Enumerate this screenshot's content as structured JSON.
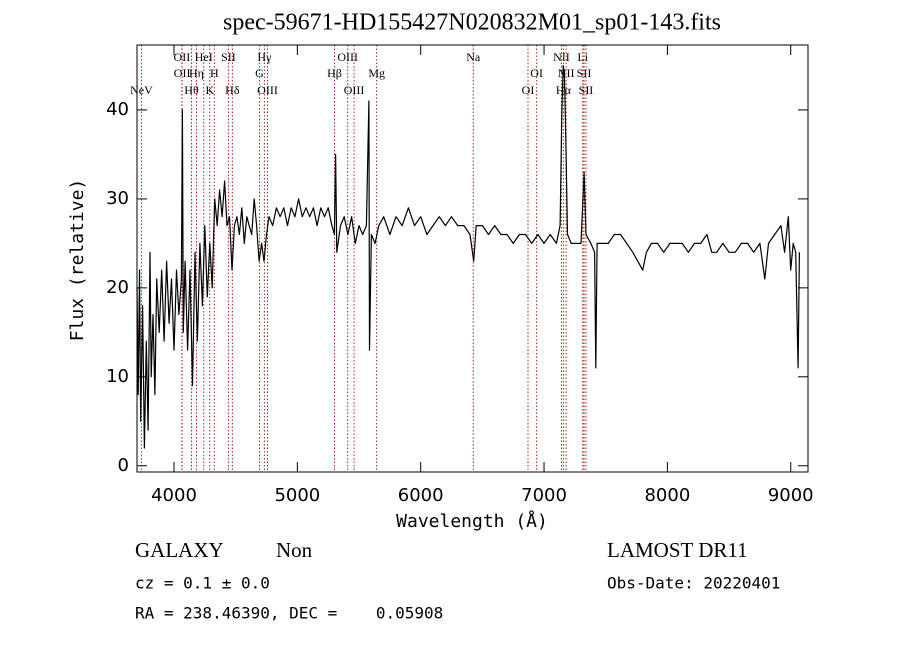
{
  "chart_data": {
    "type": "line",
    "title": "spec-59671-HD155427N020832M01_sp01-143.fits",
    "xlabel": "Wavelength (Å)",
    "ylabel": "Flux (relative)",
    "xlim": [
      3700,
      9140
    ],
    "ylim": [
      -0.7,
      47.3
    ],
    "xticks": [
      4000,
      5000,
      6000,
      7000,
      8000,
      9000
    ],
    "yticks": [
      0,
      10,
      20,
      30,
      40
    ],
    "color": "#000000",
    "line_color": "#b22222",
    "x": [
      3700,
      3710,
      3720,
      3730,
      3745,
      3760,
      3775,
      3790,
      3805,
      3815,
      3830,
      3845,
      3860,
      3880,
      3900,
      3920,
      3940,
      3960,
      3980,
      4000,
      4020,
      4040,
      4060,
      4068,
      4075,
      4090,
      4110,
      4130,
      4150,
      4170,
      4190,
      4210,
      4230,
      4250,
      4270,
      4290,
      4310,
      4330,
      4350,
      4370,
      4390,
      4410,
      4430,
      4450,
      4470,
      4490,
      4510,
      4530,
      4550,
      4570,
      4590,
      4610,
      4630,
      4650,
      4670,
      4690,
      4710,
      4730,
      4750,
      4770,
      4800,
      4830,
      4860,
      4890,
      4920,
      4950,
      4980,
      5010,
      5040,
      5070,
      5100,
      5130,
      5160,
      5190,
      5220,
      5250,
      5280,
      5300,
      5310,
      5320,
      5350,
      5380,
      5410,
      5440,
      5470,
      5500,
      5530,
      5560,
      5580,
      5585,
      5600,
      5630,
      5660,
      5700,
      5750,
      5800,
      5850,
      5900,
      5950,
      6000,
      6050,
      6100,
      6150,
      6200,
      6250,
      6300,
      6350,
      6400,
      6430,
      6450,
      6500,
      6550,
      6600,
      6650,
      6700,
      6750,
      6800,
      6850,
      6900,
      6950,
      7000,
      7050,
      7100,
      7130,
      7145,
      7155,
      7165,
      7175,
      7190,
      7220,
      7260,
      7300,
      7325,
      7340,
      7380,
      7410,
      7420,
      7430,
      7470,
      7520,
      7570,
      7620,
      7670,
      7720,
      7760,
      7800,
      7830,
      7870,
      7920,
      7970,
      8020,
      8070,
      8120,
      8170,
      8220,
      8270,
      8320,
      8360,
      8400,
      8450,
      8500,
      8550,
      8600,
      8650,
      8700,
      8750,
      8790,
      8820,
      8870,
      8920,
      8950,
      8980,
      9000,
      9020,
      9040,
      9060,
      9070
    ],
    "values": [
      20,
      8,
      22,
      5,
      18,
      2,
      14,
      4,
      24,
      10,
      17,
      8,
      21,
      15,
      22,
      14,
      23,
      16,
      21,
      13,
      22,
      17,
      21,
      40,
      15,
      23,
      13,
      22,
      9,
      24,
      14,
      25,
      18,
      27,
      19,
      25,
      20,
      30,
      27,
      31,
      28,
      32,
      27,
      28,
      22,
      27,
      28,
      26,
      29,
      25,
      28,
      27,
      26,
      30,
      27,
      23,
      25,
      23,
      26,
      28,
      27,
      29,
      28,
      29,
      27,
      29,
      28,
      30,
      28,
      29,
      28,
      29,
      27,
      29,
      28,
      29,
      27,
      26,
      35,
      24,
      27,
      28,
      26,
      28,
      25,
      27,
      26,
      27,
      41,
      13,
      26,
      25,
      27,
      28,
      26,
      28,
      27,
      29,
      27,
      28,
      26,
      27,
      28,
      27,
      28,
      27,
      27,
      26,
      23,
      27,
      27,
      26,
      27,
      26,
      26,
      25,
      26,
      26,
      25,
      26,
      25,
      26,
      25,
      27,
      40,
      45,
      44,
      38,
      26,
      25,
      25,
      25,
      33,
      26,
      25,
      24,
      11,
      25,
      25,
      25,
      26,
      26,
      25,
      24,
      23,
      22,
      24,
      25,
      25,
      24,
      25,
      25,
      25,
      24,
      25,
      25,
      26,
      24,
      24,
      25,
      24,
      24,
      25,
      25,
      24,
      25,
      21,
      25,
      26,
      27,
      24,
      28,
      22,
      25,
      24,
      11,
      24
    ],
    "lines": [
      {
        "label": "NeV",
        "wavelength": 3736
      },
      {
        "label": "OII",
        "wavelength": 4064
      },
      {
        "label": "OII",
        "wavelength": 4066
      },
      {
        "label": "Hθ",
        "wavelength": 4142
      },
      {
        "label": "Hη",
        "wavelength": 4182
      },
      {
        "label": "HeI",
        "wavelength": 4241
      },
      {
        "label": "K",
        "wavelength": 4290
      },
      {
        "label": "H",
        "wavelength": 4327
      },
      {
        "label": "SII",
        "wavelength": 4441
      },
      {
        "label": "Hδ",
        "wavelength": 4473
      },
      {
        "label": "G",
        "wavelength": 4693
      },
      {
        "label": "Hγ",
        "wavelength": 4733
      },
      {
        "label": "OIII",
        "wavelength": 4758
      },
      {
        "label": "Hβ",
        "wavelength": 5301
      },
      {
        "label": "OIII",
        "wavelength": 5408
      },
      {
        "label": "OIII",
        "wavelength": 5460
      },
      {
        "label": "Mg",
        "wavelength": 5643
      },
      {
        "label": "Na",
        "wavelength": 6426
      },
      {
        "label": "OI",
        "wavelength": 6870
      },
      {
        "label": "OI",
        "wavelength": 6940
      },
      {
        "label": "NII",
        "wavelength": 7141
      },
      {
        "label": "Hα",
        "wavelength": 7157
      },
      {
        "label": "NII",
        "wavelength": 7179
      },
      {
        "label": "Li",
        "wavelength": 7314
      },
      {
        "label": "SII",
        "wavelength": 7324
      },
      {
        "label": "SII",
        "wavelength": 7340
      }
    ],
    "annotations": [
      "GALAXY",
      "Non",
      "LAMOST DR11",
      "cz = 0.1 ± 0.0",
      "Obs-Date: 20220401",
      "RA = 238.46390, DEC =    0.05908"
    ]
  }
}
